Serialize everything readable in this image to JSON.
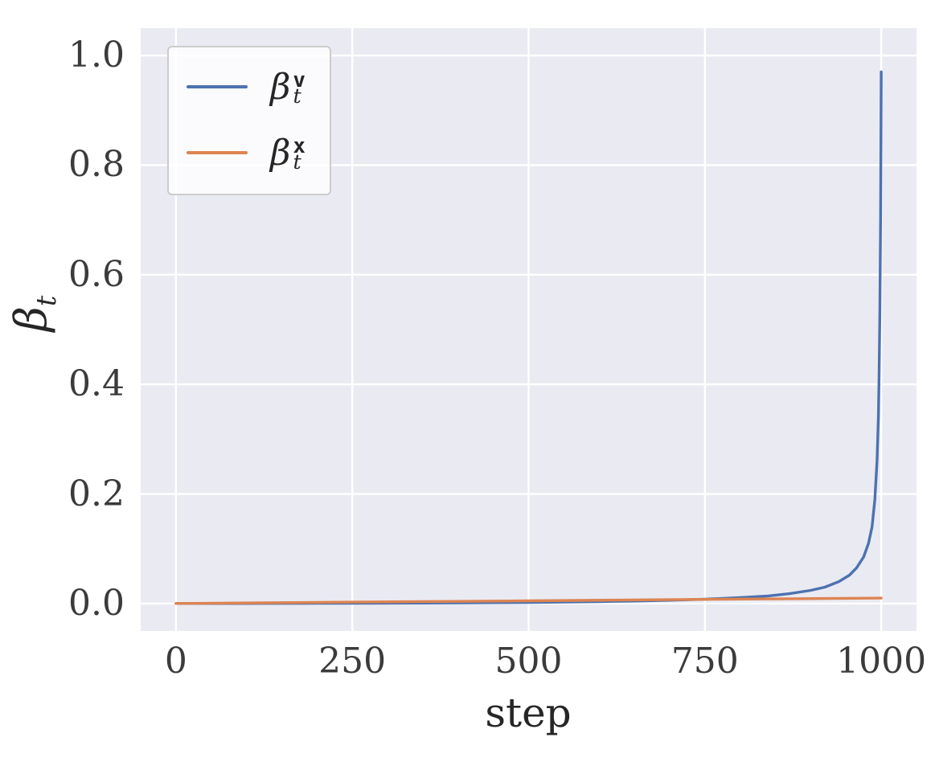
{
  "figure": {
    "background": "#ffffff",
    "plot_background": "#eaeaf2",
    "grid_color": "#ffffff",
    "tick_color": "#3b3b3b"
  },
  "chart_data": {
    "type": "line",
    "title": "",
    "xlabel": "step",
    "ylabel": "β_t",
    "ylabel_base": "β",
    "ylabel_sub": "t",
    "grid": true,
    "legend_position": "upper-left",
    "xlim": [
      -50,
      1050
    ],
    "ylim": [
      -0.05,
      1.05
    ],
    "xticks": [
      0,
      250,
      500,
      750,
      1000
    ],
    "yticks": [
      0.0,
      0.2,
      0.4,
      0.6,
      0.8,
      1.0
    ],
    "xtick_labels": [
      "0",
      "250",
      "500",
      "750",
      "1000"
    ],
    "ytick_labels": [
      "0.0",
      "0.2",
      "0.4",
      "0.6",
      "0.8",
      "1.0"
    ],
    "series": [
      {
        "name": "beta_t_v",
        "label": "β_t^v",
        "label_base": "β",
        "label_sub": "t",
        "label_sup": "v",
        "color": "#4c72b0",
        "points": [
          [
            0,
            0.0001
          ],
          [
            50,
            0.00015
          ],
          [
            100,
            0.0002
          ],
          [
            150,
            0.0003
          ],
          [
            200,
            0.0004
          ],
          [
            250,
            0.0005
          ],
          [
            300,
            0.0007
          ],
          [
            350,
            0.0009
          ],
          [
            400,
            0.0012
          ],
          [
            450,
            0.0016
          ],
          [
            500,
            0.002
          ],
          [
            550,
            0.0027
          ],
          [
            600,
            0.0035
          ],
          [
            650,
            0.0046
          ],
          [
            700,
            0.006
          ],
          [
            750,
            0.008
          ],
          [
            800,
            0.011
          ],
          [
            840,
            0.014
          ],
          [
            870,
            0.018
          ],
          [
            900,
            0.024
          ],
          [
            920,
            0.03
          ],
          [
            940,
            0.04
          ],
          [
            955,
            0.052
          ],
          [
            965,
            0.065
          ],
          [
            975,
            0.085
          ],
          [
            982,
            0.11
          ],
          [
            987,
            0.14
          ],
          [
            991,
            0.19
          ],
          [
            994,
            0.26
          ],
          [
            996,
            0.34
          ],
          [
            997,
            0.42
          ],
          [
            998,
            0.53
          ],
          [
            999,
            0.7
          ],
          [
            1000,
            0.97
          ]
        ]
      },
      {
        "name": "beta_t_x",
        "label": "β_t^x",
        "label_base": "β",
        "label_sub": "t",
        "label_sup": "x",
        "color": "#dd8452",
        "points": [
          [
            0,
            0.0001
          ],
          [
            125,
            0.0013
          ],
          [
            250,
            0.0026
          ],
          [
            375,
            0.0038
          ],
          [
            500,
            0.005
          ],
          [
            625,
            0.0063
          ],
          [
            750,
            0.0076
          ],
          [
            875,
            0.0088
          ],
          [
            1000,
            0.01
          ]
        ]
      }
    ]
  }
}
